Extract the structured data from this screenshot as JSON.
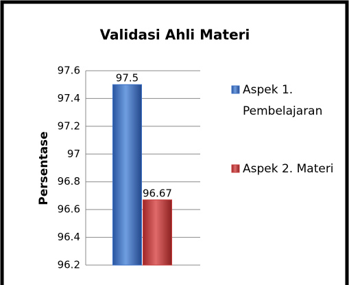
{
  "chart_data": {
    "type": "bar",
    "title": "Validasi Ahli Materi",
    "y_label": "Persentase",
    "categories": [
      null
    ],
    "series": [
      {
        "name": "Aspek 1. Pembelajaran",
        "color": "#3a6fc4",
        "values": [
          97.5
        ]
      },
      {
        "name": "Aspek 2. Materi",
        "color": "#c63a3a",
        "values": [
          96.67
        ]
      }
    ],
    "ylim": [
      96.2,
      97.6
    ],
    "yticks": [
      96.2,
      96.4,
      96.6,
      96.8,
      97,
      97.2,
      97.4,
      97.6
    ],
    "grid": true,
    "legend": "right"
  }
}
